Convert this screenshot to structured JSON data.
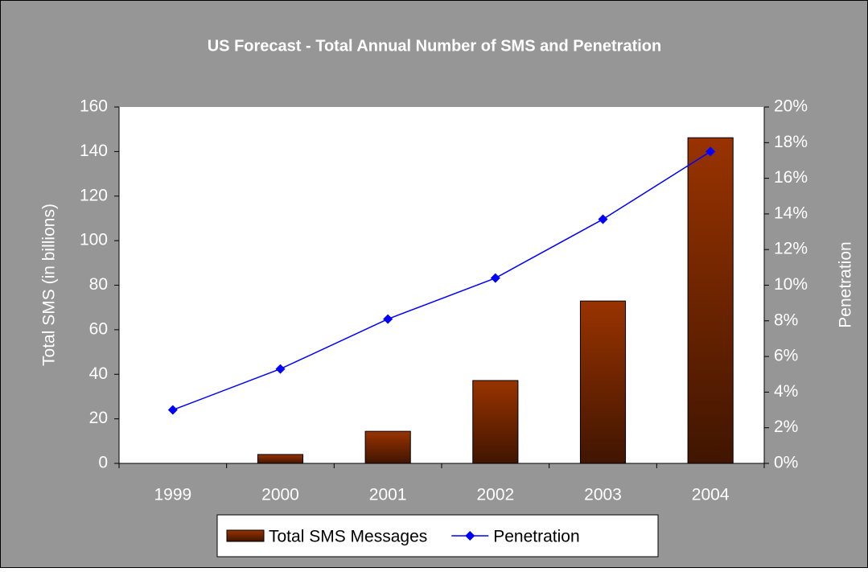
{
  "chart_data": {
    "type": "bar",
    "title": "US Forecast - Total Annual Number of SMS and Penetration",
    "ylabel": "Total SMS (in billions)",
    "y2label": "Penetration",
    "categories": [
      "1999",
      "2000",
      "2001",
      "2002",
      "2003",
      "2004"
    ],
    "series": [
      {
        "name": "Total SMS Messages",
        "color": "#993300",
        "values": [
          0,
          4,
          14.4,
          37.2,
          72.9,
          146.2
        ]
      },
      {
        "name": "Penetration",
        "color": "#0000ff",
        "type": "line",
        "axis": "y2",
        "values": [
          3,
          5.3,
          8.1,
          10.4,
          13.7,
          17.5
        ]
      }
    ],
    "ylim": [
      0,
      160
    ],
    "yticks": [
      0,
      20,
      40,
      60,
      80,
      100,
      120,
      140,
      160
    ],
    "y2lim": [
      0,
      20
    ],
    "y2ticks": [
      {
        "value": 0,
        "label": "0%"
      },
      {
        "value": 2,
        "label": "2%"
      },
      {
        "value": 4,
        "label": "4%"
      },
      {
        "value": 6,
        "label": "6%"
      },
      {
        "value": 8,
        "label": "8%"
      },
      {
        "value": 10,
        "label": "10%"
      },
      {
        "value": 12,
        "label": "12%"
      },
      {
        "value": 14,
        "label": "14%"
      },
      {
        "value": 16,
        "label": "16%"
      },
      {
        "value": 18,
        "label": "18%"
      },
      {
        "value": 20,
        "label": "20%"
      }
    ],
    "legend": "bottom"
  }
}
